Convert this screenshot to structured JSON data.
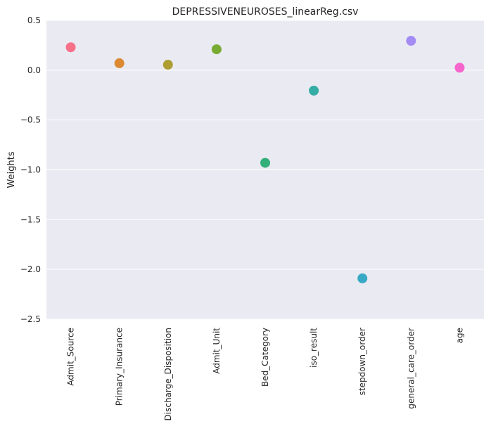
{
  "chart_data": {
    "type": "scatter",
    "title": "DEPRESSIVENEUROSES_linearReg.csv",
    "xlabel": "",
    "ylabel": "Weights",
    "ylim": [
      -2.5,
      0.5
    ],
    "yticks": [
      0.5,
      0.0,
      -0.5,
      -1.0,
      -1.5,
      -2.0,
      -2.5
    ],
    "ytick_labels": [
      "0.5",
      "0.0",
      "−0.5",
      "−1.0",
      "−1.5",
      "−2.0",
      "−2.5"
    ],
    "grid": true,
    "categories": [
      "Admit_Source",
      "Primary_Insurance",
      "Discharge_Disposition",
      "Admit_Unit",
      "Bed_Category",
      "iso_result",
      "stepdown_order",
      "general_care_order",
      "age"
    ],
    "values": [
      0.23,
      0.07,
      0.055,
      0.21,
      -0.93,
      -0.205,
      -2.09,
      0.295,
      0.025
    ],
    "colors": [
      "#f77189",
      "#dc8932",
      "#ae9d31",
      "#77ab31",
      "#33b07a",
      "#36ada4",
      "#38a9c5",
      "#a48cf4",
      "#f565cc"
    ]
  }
}
